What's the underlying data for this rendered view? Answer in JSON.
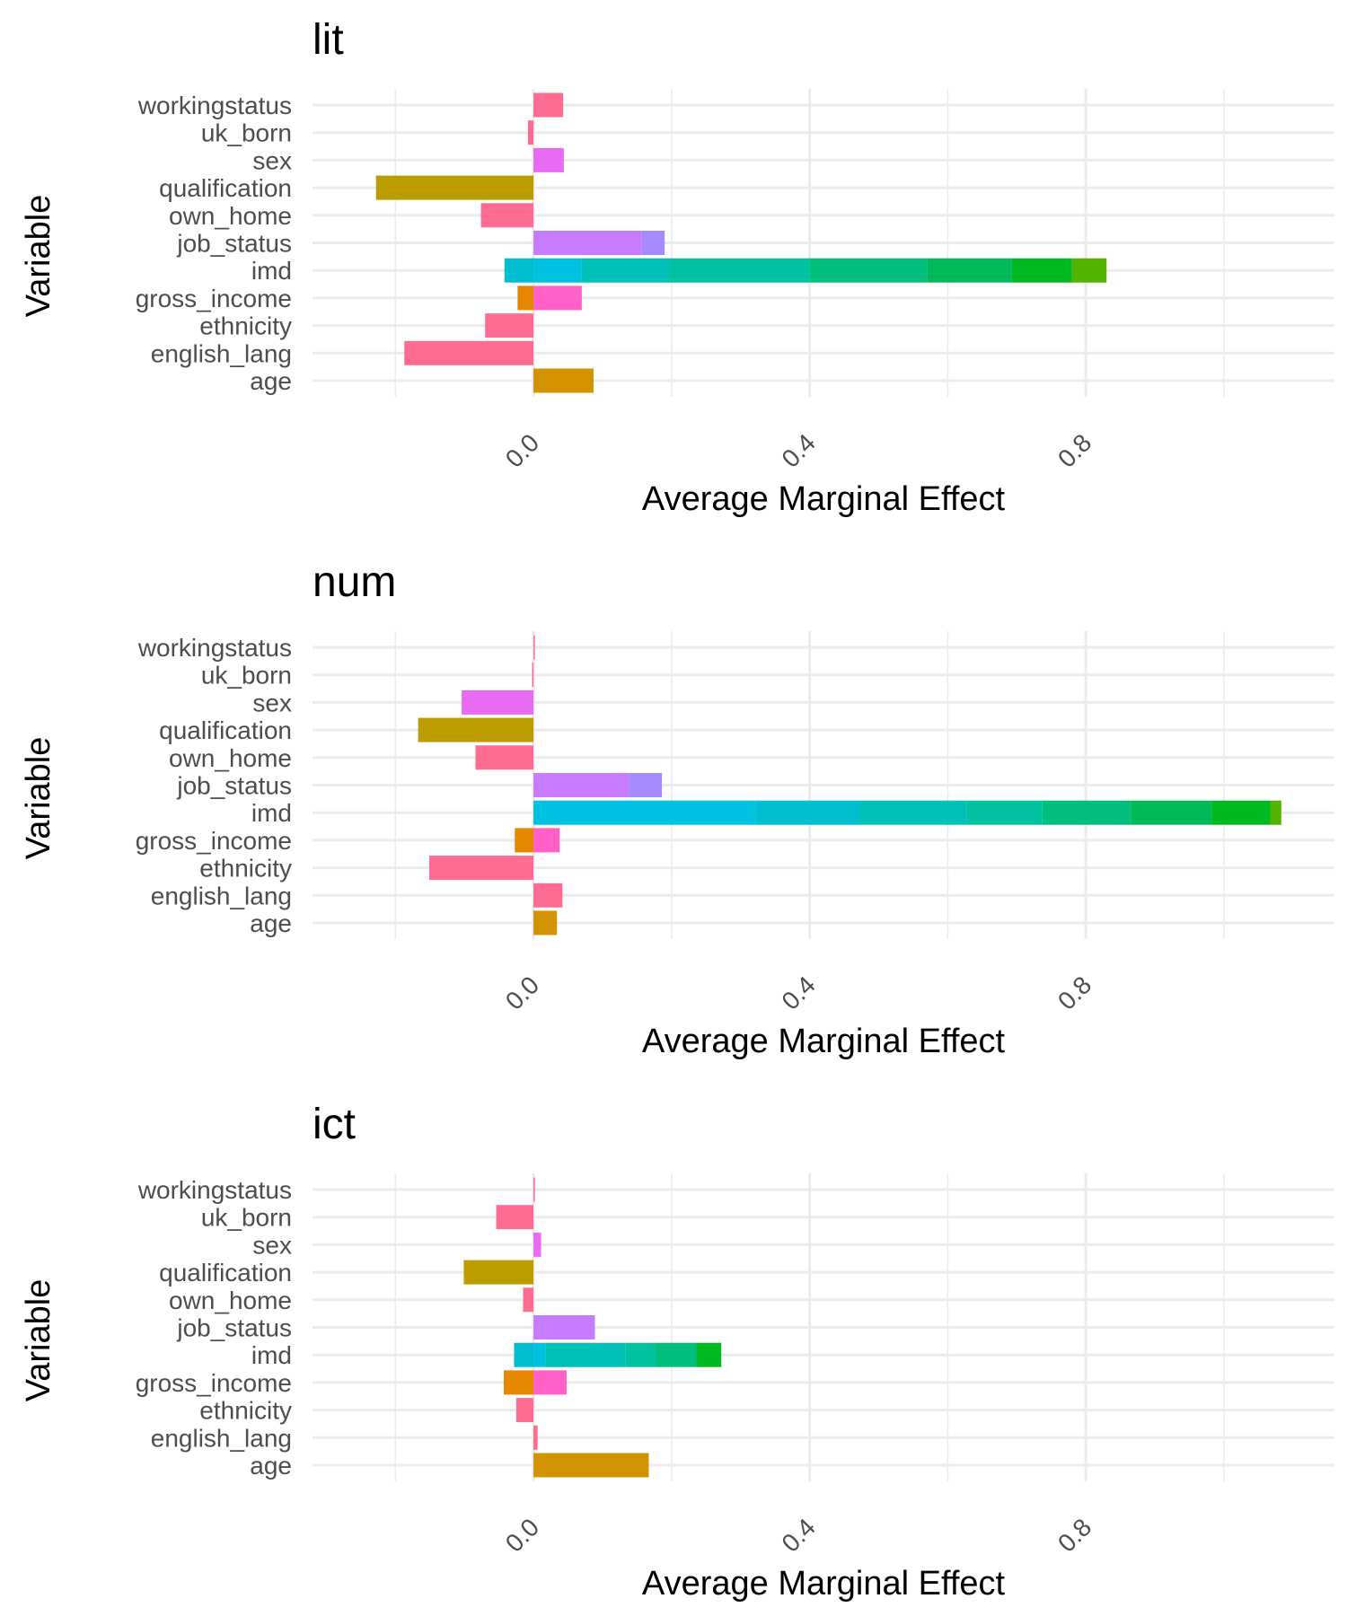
{
  "chart_data": [
    {
      "type": "bar",
      "title": "lit",
      "xlabel": "Average Marginal Effect",
      "ylabel": "Variable",
      "xlim": [
        -0.32,
        1.16
      ],
      "x_ticks": [
        "0.0",
        "0.4",
        "0.8"
      ],
      "x_tick_values": [
        0.0,
        0.4,
        0.8
      ],
      "grid": true,
      "categories": [
        "workingstatus",
        "uk_born",
        "sex",
        "qualification",
        "own_home",
        "job_status",
        "imd",
        "gross_income",
        "ethnicity",
        "english_lang",
        "age"
      ],
      "segments": [
        {
          "category": "workingstatus",
          "start": 0,
          "end": 0.043,
          "color": "#FF6C91"
        },
        {
          "category": "uk_born",
          "start": -0.008,
          "end": 0,
          "color": "#FF6C91"
        },
        {
          "category": "sex",
          "start": 0,
          "end": 0.044,
          "color": "#E76BF3"
        },
        {
          "category": "qualification",
          "start": -0.228,
          "end": 0,
          "color": "#BB9D00"
        },
        {
          "category": "own_home",
          "start": -0.076,
          "end": 0,
          "color": "#FF6C91"
        },
        {
          "category": "job_status",
          "start": 0,
          "end": 0.157,
          "color": "#C77CFF"
        },
        {
          "category": "job_status",
          "start": 0.157,
          "end": 0.19,
          "color": "#A58AFF"
        },
        {
          "category": "imd",
          "start": -0.042,
          "end": 0,
          "color": "#00BDD0"
        },
        {
          "category": "imd",
          "start": 0,
          "end": 0.07,
          "color": "#00C1E0"
        },
        {
          "category": "imd",
          "start": 0.07,
          "end": 0.197,
          "color": "#00C0B8"
        },
        {
          "category": "imd",
          "start": 0.197,
          "end": 0.4,
          "color": "#00C1A0"
        },
        {
          "category": "imd",
          "start": 0.4,
          "end": 0.57,
          "color": "#00BF7D"
        },
        {
          "category": "imd",
          "start": 0.57,
          "end": 0.693,
          "color": "#00BA5A"
        },
        {
          "category": "imd",
          "start": 0.693,
          "end": 0.78,
          "color": "#00B81F"
        },
        {
          "category": "imd",
          "start": 0.78,
          "end": 0.83,
          "color": "#53B400"
        },
        {
          "category": "gross_income",
          "start": -0.023,
          "end": 0,
          "color": "#E58700"
        },
        {
          "category": "gross_income",
          "start": 0,
          "end": 0.07,
          "color": "#FF61C9"
        },
        {
          "category": "ethnicity",
          "start": -0.07,
          "end": 0,
          "color": "#FF6C91"
        },
        {
          "category": "english_lang",
          "start": -0.187,
          "end": 0,
          "color": "#FF6C91"
        },
        {
          "category": "age",
          "start": 0,
          "end": 0.087,
          "color": "#D39200"
        }
      ]
    },
    {
      "type": "bar",
      "title": "num",
      "xlabel": "Average Marginal Effect",
      "ylabel": "Variable",
      "xlim": [
        -0.32,
        1.16
      ],
      "x_ticks": [
        "0.0",
        "0.4",
        "0.8"
      ],
      "x_tick_values": [
        0.0,
        0.4,
        0.8
      ],
      "grid": true,
      "categories": [
        "workingstatus",
        "uk_born",
        "sex",
        "qualification",
        "own_home",
        "job_status",
        "imd",
        "gross_income",
        "ethnicity",
        "english_lang",
        "age"
      ],
      "segments": [
        {
          "category": "workingstatus",
          "start": 0,
          "end": 0.002,
          "color": "#FF6C91"
        },
        {
          "category": "uk_born",
          "start": -0.002,
          "end": 0,
          "color": "#FF6C91"
        },
        {
          "category": "sex",
          "start": -0.104,
          "end": 0,
          "color": "#E76BF3"
        },
        {
          "category": "qualification",
          "start": -0.167,
          "end": 0,
          "color": "#BB9D00"
        },
        {
          "category": "own_home",
          "start": -0.084,
          "end": 0,
          "color": "#FF6C91"
        },
        {
          "category": "job_status",
          "start": 0,
          "end": 0.138,
          "color": "#C77CFF"
        },
        {
          "category": "job_status",
          "start": 0.138,
          "end": 0.186,
          "color": "#A58AFF"
        },
        {
          "category": "imd",
          "start": 0,
          "end": 0.322,
          "color": "#00C1E0"
        },
        {
          "category": "imd",
          "start": 0.322,
          "end": 0.472,
          "color": "#00BDD0"
        },
        {
          "category": "imd",
          "start": 0.472,
          "end": 0.627,
          "color": "#00C0B8"
        },
        {
          "category": "imd",
          "start": 0.627,
          "end": 0.737,
          "color": "#00C1A0"
        },
        {
          "category": "imd",
          "start": 0.737,
          "end": 0.865,
          "color": "#00BF7D"
        },
        {
          "category": "imd",
          "start": 0.865,
          "end": 0.982,
          "color": "#00BA5A"
        },
        {
          "category": "imd",
          "start": 0.982,
          "end": 1.067,
          "color": "#00B81F"
        },
        {
          "category": "imd",
          "start": 1.067,
          "end": 1.083,
          "color": "#53B400"
        },
        {
          "category": "gross_income",
          "start": -0.027,
          "end": 0,
          "color": "#E58700"
        },
        {
          "category": "gross_income",
          "start": 0,
          "end": 0.038,
          "color": "#FF61C9"
        },
        {
          "category": "ethnicity",
          "start": -0.151,
          "end": 0,
          "color": "#FF6C91"
        },
        {
          "category": "english_lang",
          "start": 0,
          "end": 0.042,
          "color": "#FF6C91"
        },
        {
          "category": "age",
          "start": 0,
          "end": 0.034,
          "color": "#D39200"
        }
      ]
    },
    {
      "type": "bar",
      "title": "ict",
      "xlabel": "Average Marginal Effect",
      "ylabel": "Variable",
      "xlim": [
        -0.32,
        1.16
      ],
      "x_ticks": [
        "0.0",
        "0.4",
        "0.8"
      ],
      "x_tick_values": [
        0.0,
        0.4,
        0.8
      ],
      "grid": true,
      "categories": [
        "workingstatus",
        "uk_born",
        "sex",
        "qualification",
        "own_home",
        "job_status",
        "imd",
        "gross_income",
        "ethnicity",
        "english_lang",
        "age"
      ],
      "segments": [
        {
          "category": "workingstatus",
          "start": 0,
          "end": 0.002,
          "color": "#FF6C91"
        },
        {
          "category": "uk_born",
          "start": -0.054,
          "end": 0,
          "color": "#FF6C91"
        },
        {
          "category": "sex",
          "start": 0,
          "end": 0.011,
          "color": "#E76BF3"
        },
        {
          "category": "qualification",
          "start": -0.101,
          "end": 0,
          "color": "#BB9D00"
        },
        {
          "category": "own_home",
          "start": -0.015,
          "end": 0,
          "color": "#FF6C91"
        },
        {
          "category": "job_status",
          "start": 0,
          "end": 0.089,
          "color": "#C77CFF"
        },
        {
          "category": "imd",
          "start": -0.028,
          "end": 0,
          "color": "#00BDD0"
        },
        {
          "category": "imd",
          "start": 0,
          "end": 0.018,
          "color": "#00C1E0"
        },
        {
          "category": "imd",
          "start": 0.018,
          "end": 0.133,
          "color": "#00C0B8"
        },
        {
          "category": "imd",
          "start": 0.133,
          "end": 0.176,
          "color": "#00C1A0"
        },
        {
          "category": "imd",
          "start": 0.176,
          "end": 0.236,
          "color": "#00BF7D"
        },
        {
          "category": "imd",
          "start": 0.236,
          "end": 0.272,
          "color": "#00B81F"
        },
        {
          "category": "gross_income",
          "start": -0.043,
          "end": 0,
          "color": "#E58700"
        },
        {
          "category": "gross_income",
          "start": 0,
          "end": 0.048,
          "color": "#FF61C9"
        },
        {
          "category": "ethnicity",
          "start": -0.025,
          "end": 0,
          "color": "#FF6C91"
        },
        {
          "category": "english_lang",
          "start": 0,
          "end": 0.006,
          "color": "#FF6C91"
        },
        {
          "category": "age",
          "start": 0,
          "end": 0.167,
          "color": "#D39200"
        }
      ]
    }
  ]
}
